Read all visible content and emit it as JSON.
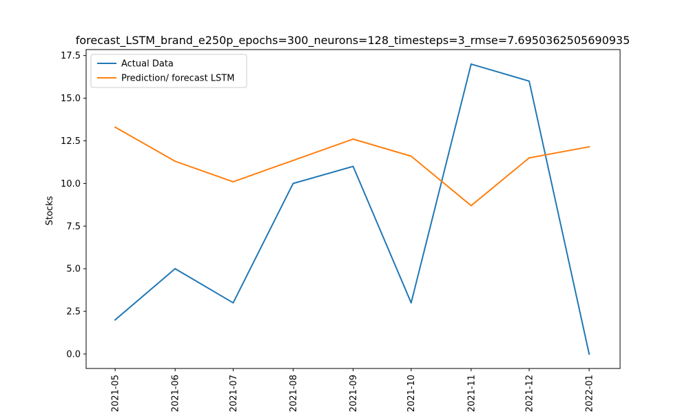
{
  "chart_data": {
    "type": "line",
    "title": "forecast_LSTM_brand_e250p_epochs=300_neurons=128_timesteps=3_rmse=7.6950362505690935",
    "xlabel": "",
    "ylabel": "Stocks",
    "x": [
      "2021-05-01",
      "2021-06-01",
      "2021-07-01",
      "2021-08-01",
      "2021-09-01",
      "2021-10-01",
      "2021-11-01",
      "2021-12-01",
      "2022-01-01"
    ],
    "xtick_labels": [
      "2021-05",
      "2021-06",
      "2021-07",
      "2021-08",
      "2021-09",
      "2021-10",
      "2021-11",
      "2021-12",
      "2022-01"
    ],
    "yticks": [
      0.0,
      2.5,
      5.0,
      7.5,
      10.0,
      12.5,
      15.0,
      17.5
    ],
    "ytick_labels": [
      "0.0",
      "2.5",
      "5.0",
      "7.5",
      "10.0",
      "12.5",
      "15.0",
      "17.5"
    ],
    "ylim": [
      -0.85,
      17.85
    ],
    "xlim": [
      "2021-04-16",
      "2022-01-17"
    ],
    "grid": false,
    "legend_position": "top-left",
    "series": [
      {
        "name": "Actual Data",
        "color": "#1f77b4",
        "values": [
          2,
          5,
          3,
          10,
          11,
          3,
          17,
          16,
          0
        ]
      },
      {
        "name": "Prediction/ forecast LSTM",
        "color": "#ff7f0e",
        "values": [
          13.3,
          11.3,
          10.1,
          11.35,
          12.6,
          11.6,
          8.7,
          11.5,
          12.15
        ]
      }
    ]
  }
}
